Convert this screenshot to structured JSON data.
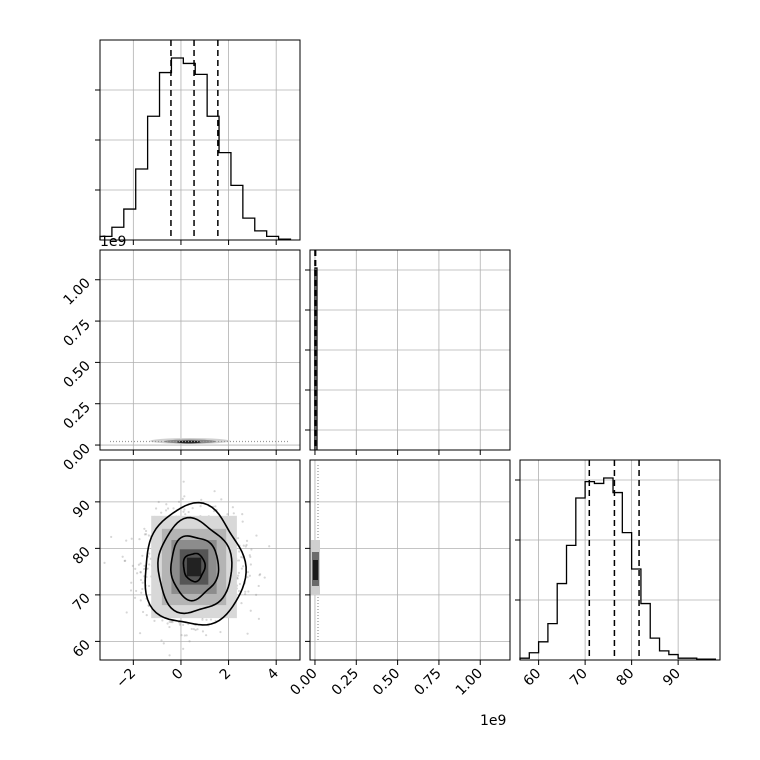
{
  "chart_data": [
    {
      "type": "histogram",
      "panel": "param-0-marginal",
      "bins": [
        -3.4,
        -2.9,
        -2.4,
        -1.9,
        -1.4,
        -0.9,
        -0.4,
        0.1,
        0.6,
        1.1,
        1.6,
        2.1,
        2.6,
        3.1,
        3.6,
        4.1,
        4.6
      ],
      "counts": [
        0.02,
        0.07,
        0.17,
        0.39,
        0.68,
        0.92,
        1.0,
        0.97,
        0.91,
        0.68,
        0.48,
        0.3,
        0.12,
        0.05,
        0.02,
        0.005
      ],
      "quantiles": [
        -0.42,
        0.55,
        1.55
      ],
      "xlim": [
        -3.4,
        5.0
      ],
      "xgrid": [
        -2,
        0,
        2,
        4
      ],
      "ygrid_fraction": [
        0.25,
        0.5,
        0.75
      ]
    },
    {
      "type": "histogram",
      "panel": "param-1-marginal",
      "bins": [
        0.0,
        12000000.0
      ],
      "counts": [
        1.0
      ],
      "quantiles": [
        0.0,
        2000000.0,
        4000000.0
      ],
      "xlim": [
        -30000000.0,
        1180000000.0
      ],
      "xticks": [
        0.0,
        250000000.0,
        500000000.0,
        750000000.0,
        1000000000.0
      ],
      "xtick_labels": [
        "0.00",
        "0.25",
        "0.50",
        "0.75",
        "1.00"
      ],
      "offset_label": "1e9"
    },
    {
      "type": "histogram",
      "panel": "param-2-marginal",
      "bins": [
        56,
        58,
        60,
        62,
        64,
        66,
        68,
        70,
        72,
        74,
        76,
        78,
        80,
        82,
        84,
        86,
        88,
        90,
        92,
        94,
        96,
        98
      ],
      "counts": [
        0.01,
        0.04,
        0.1,
        0.2,
        0.42,
        0.63,
        0.89,
        0.98,
        0.97,
        1.0,
        0.92,
        0.7,
        0.5,
        0.31,
        0.12,
        0.05,
        0.03,
        0.01,
        0.01,
        0.005,
        0.005
      ],
      "quantiles": [
        70.9,
        76.3,
        81.6
      ],
      "xlim": [
        56,
        99
      ],
      "xticks": [
        60,
        70,
        80,
        90
      ],
      "xtick_labels": [
        "60",
        "70",
        "80",
        "90"
      ]
    },
    {
      "type": "2d-density",
      "panel": "param-0-vs-param-1",
      "xlim": [
        -3.4,
        5.0
      ],
      "ylim": [
        -30000000.0,
        1180000000.0
      ],
      "yticks": [
        0.0,
        250000000.0,
        500000000.0,
        750000000.0,
        1000000000.0
      ],
      "ytick_labels": [
        "0.00",
        "0.25",
        "0.50",
        "0.75",
        "1.00"
      ],
      "offset_label": "1e9"
    },
    {
      "type": "2d-density",
      "panel": "param-0-vs-param-2",
      "xlim": [
        -3.4,
        5.0
      ],
      "ylim": [
        56,
        99
      ],
      "xticks": [
        -2,
        0,
        2,
        4
      ],
      "xtick_labels": [
        "−2",
        "0",
        "2",
        "4"
      ],
      "yticks": [
        60,
        70,
        80,
        90
      ],
      "ytick_labels": [
        "60",
        "70",
        "80",
        "90"
      ],
      "center": [
        0.55,
        76.0
      ],
      "contour_radii": [
        [
          0.45,
          3.0
        ],
        [
          1.0,
          6.8
        ],
        [
          1.55,
          10.0
        ],
        [
          2.1,
          13.0
        ]
      ]
    },
    {
      "type": "2d-density",
      "panel": "param-1-vs-param-2",
      "xlim": [
        -30000000.0,
        1180000000.0
      ],
      "ylim": [
        56,
        99
      ]
    }
  ],
  "offset_labels": {
    "row1_y": "1e9",
    "col1_x": "1e9"
  }
}
